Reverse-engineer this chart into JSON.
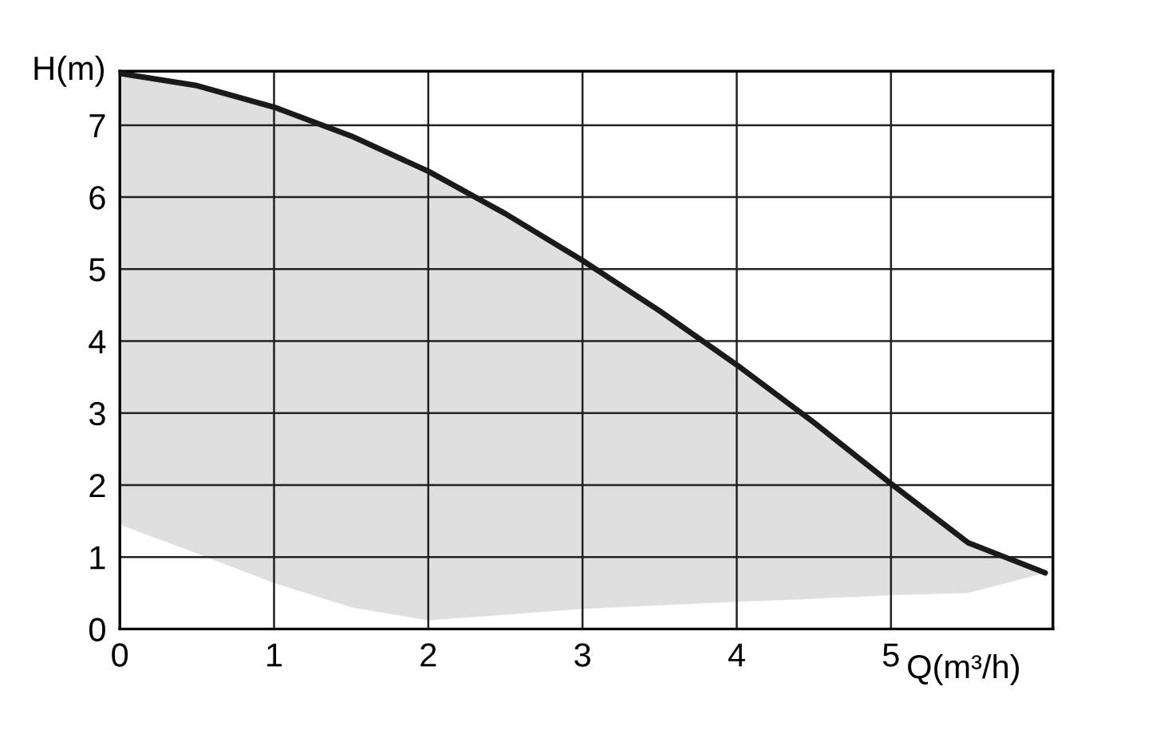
{
  "chart_data": {
    "type": "line",
    "xlabel": "Q(m³/h)",
    "ylabel": "H(m)",
    "x": [
      0,
      0.5,
      1,
      1.5,
      2,
      2.5,
      3,
      3.5,
      4,
      4.5,
      5,
      5.5,
      6
    ],
    "series": [
      {
        "color": "#1a1a1a",
        "values": [
          7.72,
          7.55,
          7.25,
          6.85,
          6.36,
          5.77,
          5.12,
          4.42,
          3.67,
          2.87,
          2.02,
          1.2,
          0.78
        ],
        "lower": [
          1.45,
          1.05,
          0.64,
          0.3,
          0.12,
          0.2,
          0.28,
          0.33,
          0.38,
          0.42,
          0.47,
          0.5,
          0.78
        ],
        "upper": [
          7.72,
          7.55,
          7.25,
          6.85,
          6.36,
          5.77,
          5.12,
          4.42,
          3.67,
          2.87,
          2.02,
          1.2,
          0.78
        ]
      }
    ],
    "xlim": [
      0,
      6.05
    ],
    "ylim": [
      0,
      7.75
    ],
    "xticks": [
      0,
      1,
      2,
      3,
      4,
      5
    ],
    "yticks": [
      0,
      1,
      2,
      3,
      4,
      5,
      6,
      7
    ],
    "grid": true,
    "line_style": "solid",
    "marker": "none"
  }
}
